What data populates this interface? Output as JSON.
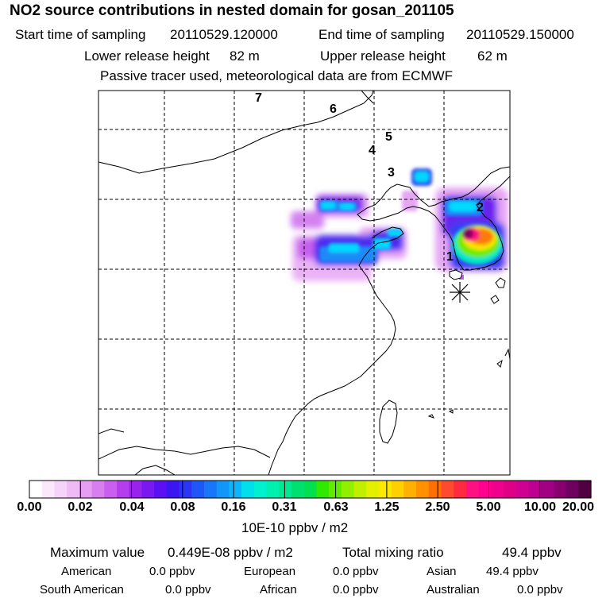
{
  "header": {
    "title": "NO2 source contributions in nested domain for gosan_201105",
    "start_label": "Start time of sampling",
    "start_value": "20110529.120000",
    "end_label": "End time of sampling",
    "end_value": "20110529.150000",
    "lower_label": "Lower release height",
    "lower_value": "82 m",
    "upper_label": "Upper release height",
    "upper_value": "62 m",
    "note": "Passive tracer used, meteorological data are from ECMWF"
  },
  "map": {
    "trajectory_labels": [
      "1",
      "2",
      "3",
      "4",
      "5",
      "6",
      "7"
    ],
    "site_marker": "gosan-station-icon"
  },
  "colorbar": {
    "tick_labels": [
      "0.00",
      "0.02",
      "0.04",
      "0.08",
      "0.16",
      "0.31",
      "0.63",
      "1.25",
      "2.50",
      "5.00",
      "10.00",
      "20.00"
    ],
    "colors": [
      "#ffffff",
      "#fbe9fb",
      "#f6d3f8",
      "#efbaf6",
      "#e69ef3",
      "#d87eef",
      "#c95ef0",
      "#b43eee",
      "#9a22ee",
      "#7a18f0",
      "#5a10f2",
      "#3b16f0",
      "#2a36f4",
      "#1f56f6",
      "#1876f8",
      "#1296fa",
      "#0db6fc",
      "#00e0ec",
      "#00f0d0",
      "#00f0b0",
      "#00e890",
      "#00e070",
      "#00e050",
      "#30e800",
      "#60ec00",
      "#90f000",
      "#c0f000",
      "#e4f000",
      "#ffe800",
      "#ffd000",
      "#ffb000",
      "#ff9000",
      "#ff7000",
      "#ff4a30",
      "#ff2a40",
      "#ff1080",
      "#ff0090",
      "#f0008c",
      "#e00086",
      "#d00090",
      "#bd0090",
      "#a20084",
      "#880070",
      "#6e0060",
      "#500040"
    ],
    "units": "10E-10 ppbv / m2"
  },
  "summary": {
    "max_label": "Maximum value",
    "max_value": "0.449E-08 ppbv / m2",
    "total_label": "Total mixing ratio",
    "total_value": "49.4 ppbv",
    "regions": [
      {
        "name": "American",
        "value": "0.0 ppbv"
      },
      {
        "name": "European",
        "value": "0.0 ppbv"
      },
      {
        "name": "Asian",
        "value": "49.4 ppbv"
      },
      {
        "name": "South American",
        "value": "0.0 ppbv"
      },
      {
        "name": "African",
        "value": "0.0 ppbv"
      },
      {
        "name": "Australian",
        "value": "0.0 ppbv"
      }
    ]
  }
}
